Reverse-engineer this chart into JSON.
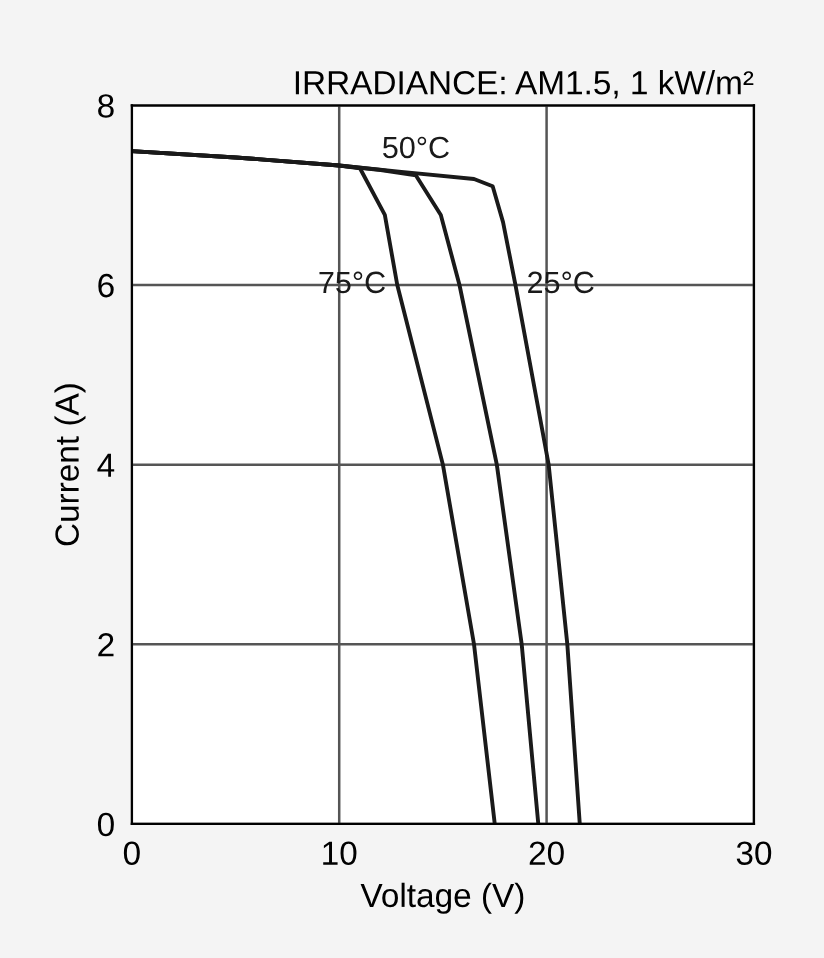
{
  "chart_data": {
    "type": "line",
    "title": "IRRADIANCE: AM1.5, 1 kW/m²",
    "xlabel": "Voltage (V)",
    "ylabel": "Current (A)",
    "xlim": [
      0,
      30
    ],
    "ylim": [
      0,
      8
    ],
    "xticks": [
      0,
      10,
      20,
      30
    ],
    "yticks": [
      0,
      2,
      4,
      6,
      8
    ],
    "grid": true,
    "marker": "none",
    "line_style": "solid",
    "series": [
      {
        "name": "75°C",
        "color": "#1a1a1a",
        "x": [
          0,
          5,
          10,
          11,
          12.2,
          12.8,
          15.0,
          16.5,
          17.5
        ],
        "values": [
          7.49,
          7.42,
          7.33,
          7.3,
          6.78,
          6.0,
          4.0,
          2.0,
          0
        ]
      },
      {
        "name": "50°C",
        "color": "#1a1a1a",
        "x": [
          0,
          5,
          10,
          12,
          13.7,
          14.9,
          15.8,
          17.6,
          18.8,
          19.6
        ],
        "values": [
          7.49,
          7.42,
          7.33,
          7.28,
          7.22,
          6.78,
          6.0,
          4.0,
          2.0,
          0
        ]
      },
      {
        "name": "25°C",
        "color": "#1a1a1a",
        "x": [
          0,
          5,
          10,
          13,
          16.5,
          17.4,
          17.9,
          18.5,
          20.1,
          21.0,
          21.6
        ],
        "values": [
          7.49,
          7.42,
          7.33,
          7.26,
          7.18,
          7.1,
          6.7,
          6.0,
          4.0,
          2.0,
          0
        ]
      }
    ]
  }
}
